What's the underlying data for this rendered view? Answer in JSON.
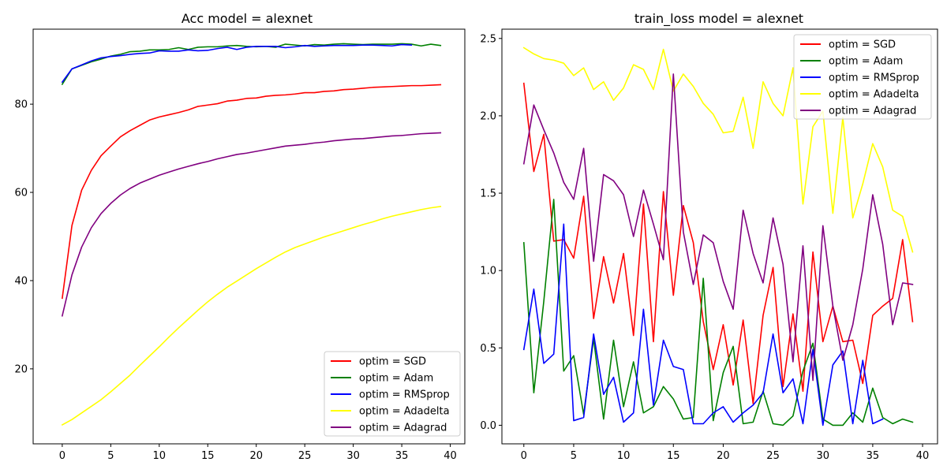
{
  "chart_data": [
    {
      "type": "line",
      "title": "Acc model = alexnet",
      "xlabel": "",
      "ylabel": "",
      "xlim": [
        -3,
        41.5
      ],
      "ylim": [
        3,
        97
      ],
      "xticks": [
        0,
        5,
        10,
        15,
        20,
        25,
        30,
        35,
        40
      ],
      "yticks": [
        20,
        40,
        60,
        80
      ],
      "legend_position": "lower-right",
      "series": [
        {
          "name": "optim = SGD",
          "color": "#ff0000",
          "values": [
            36,
            52.5,
            60.5,
            65,
            68.3,
            70.5,
            72.6,
            74,
            75.2,
            76.4,
            77.1,
            77.6,
            78.1,
            78.7,
            79.5,
            79.8,
            80.1,
            80.7,
            80.9,
            81.3,
            81.4,
            81.8,
            82,
            82.1,
            82.3,
            82.6,
            82.6,
            82.9,
            83,
            83.3,
            83.4,
            83.6,
            83.8,
            83.9,
            84,
            84.1,
            84.2,
            84.2,
            84.3,
            84.4
          ]
        },
        {
          "name": "optim = Adam",
          "color": "#008000",
          "values": [
            84.5,
            88,
            88.8,
            89.6,
            90.2,
            90.9,
            91.3,
            91.9,
            92,
            92.3,
            92.3,
            92.4,
            92.8,
            92.4,
            92.9,
            93,
            93,
            93.2,
            93.3,
            93.1,
            93,
            93.1,
            92.9,
            93.6,
            93.4,
            93.2,
            93.5,
            93.4,
            93.6,
            93.7,
            93.6,
            93.5,
            93.6,
            93.6,
            93.6,
            93.7,
            93.6,
            93.2,
            93.6,
            93.3
          ]
        },
        {
          "name": "optim = RMSprop",
          "color": "#0000ff",
          "values": [
            85,
            88,
            88.9,
            89.8,
            90.5,
            90.8,
            91,
            91.3,
            91.5,
            91.6,
            92.1,
            92,
            92,
            92.3,
            92.1,
            92.2,
            92.6,
            92.9,
            92.4,
            92.9,
            93.1,
            93.1,
            93.1,
            92.8,
            93,
            93.3,
            93.1,
            93.2,
            93.3,
            93.3,
            93.3,
            93.4,
            93.4,
            93.3,
            93.2,
            93.5,
            93.4
          ]
        },
        {
          "name": "optim = Adadelta",
          "color": "#ffff00",
          "values": [
            7.3,
            8.5,
            10,
            11.5,
            13,
            14.8,
            16.7,
            18.6,
            20.8,
            22.9,
            25,
            27.2,
            29.3,
            31.3,
            33.3,
            35.2,
            36.9,
            38.5,
            39.9,
            41.3,
            42.7,
            44,
            45.3,
            46.5,
            47.5,
            48.3,
            49.1,
            49.9,
            50.6,
            51.3,
            52,
            52.7,
            53.3,
            54,
            54.6,
            55.1,
            55.6,
            56.1,
            56.5,
            56.8
          ]
        },
        {
          "name": "optim = Adagrad",
          "color": "#800080",
          "values": [
            32,
            41.3,
            47.6,
            52,
            55.2,
            57.5,
            59.4,
            60.9,
            62.1,
            63,
            63.9,
            64.6,
            65.3,
            65.9,
            66.5,
            67,
            67.6,
            68.1,
            68.6,
            68.9,
            69.3,
            69.7,
            70.1,
            70.5,
            70.7,
            70.9,
            71.2,
            71.4,
            71.7,
            71.9,
            72.1,
            72.2,
            72.4,
            72.6,
            72.8,
            72.9,
            73.1,
            73.3,
            73.4,
            73.5
          ]
        }
      ]
    },
    {
      "type": "line",
      "title": "train_loss model = alexnet",
      "xlabel": "",
      "ylabel": "",
      "xlim": [
        -2.2,
        41.5
      ],
      "ylim": [
        -0.12,
        2.56
      ],
      "xticks": [
        0,
        5,
        10,
        15,
        20,
        25,
        30,
        35,
        40
      ],
      "yticks": [
        0.0,
        0.5,
        1.0,
        1.5,
        2.0,
        2.5
      ],
      "legend_position": "upper-right",
      "series": [
        {
          "name": "optim = SGD",
          "color": "#ff0000",
          "values": [
            2.21,
            1.64,
            1.88,
            1.19,
            1.2,
            1.08,
            1.48,
            0.69,
            1.09,
            0.79,
            1.11,
            0.58,
            1.43,
            0.54,
            1.51,
            0.84,
            1.42,
            1.18,
            0.67,
            0.36,
            0.65,
            0.26,
            0.68,
            0.14,
            0.71,
            1.02,
            0.25,
            0.72,
            0.22,
            1.12,
            0.54,
            0.77,
            0.54,
            0.55,
            0.27,
            0.71,
            0.77,
            0.82,
            1.2,
            0.67
          ]
        },
        {
          "name": "optim = Adam",
          "color": "#008000",
          "values": [
            1.18,
            0.21,
            0.8,
            1.46,
            0.35,
            0.45,
            0.07,
            0.56,
            0.04,
            0.55,
            0.12,
            0.41,
            0.08,
            0.12,
            0.25,
            0.17,
            0.04,
            0.05,
            0.95,
            0.03,
            0.34,
            0.51,
            0.01,
            0.02,
            0.22,
            0.01,
            0,
            0.06,
            0.35,
            0.53,
            0.04,
            0,
            0,
            0.08,
            0.02,
            0.24,
            0.05,
            0.01,
            0.04,
            0.02
          ]
        },
        {
          "name": "optim = RMSprop",
          "color": "#0000ff",
          "values": [
            0.49,
            0.88,
            0.4,
            0.46,
            1.3,
            0.03,
            0.05,
            0.59,
            0.2,
            0.31,
            0.02,
            0.08,
            0.75,
            0.13,
            0.55,
            0.38,
            0.36,
            0.01,
            0.01,
            0.08,
            0.12,
            0.02,
            0.08,
            0.13,
            0.21,
            0.59,
            0.21,
            0.3,
            0.01,
            0.49,
            0,
            0.39,
            0.48,
            0.01,
            0.42,
            0.01,
            0.04
          ]
        },
        {
          "name": "optim = Adadelta",
          "color": "#ffff00",
          "values": [
            2.44,
            2.4,
            2.37,
            2.36,
            2.34,
            2.26,
            2.31,
            2.17,
            2.22,
            2.1,
            2.18,
            2.33,
            2.3,
            2.17,
            2.43,
            2.16,
            2.27,
            2.19,
            2.08,
            2.01,
            1.89,
            1.9,
            2.12,
            1.79,
            2.22,
            2.08,
            2,
            2.31,
            1.43,
            1.93,
            2.03,
            1.37,
            1.99,
            1.34,
            1.56,
            1.82,
            1.67,
            1.39,
            1.35,
            1.12
          ]
        },
        {
          "name": "optim = Adagrad",
          "color": "#800080",
          "values": [
            1.69,
            2.07,
            1.91,
            1.76,
            1.57,
            1.46,
            1.79,
            1.06,
            1.62,
            1.58,
            1.49,
            1.22,
            1.52,
            1.3,
            1.07,
            2.27,
            1.25,
            0.91,
            1.23,
            1.18,
            0.93,
            0.75,
            1.39,
            1.11,
            0.92,
            1.34,
            1.04,
            0.41,
            1.16,
            0.29,
            1.29,
            0.77,
            0.42,
            0.65,
            1.01,
            1.49,
            1.17,
            0.65,
            0.92,
            0.91
          ]
        }
      ]
    }
  ]
}
